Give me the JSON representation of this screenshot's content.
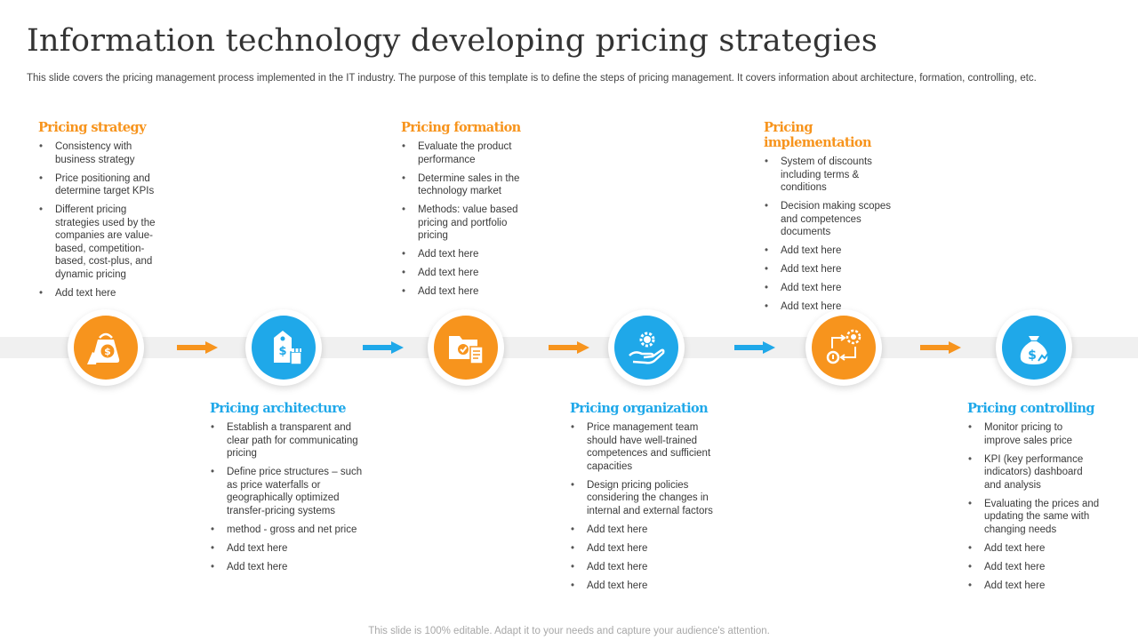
{
  "title": "Information technology developing pricing strategies",
  "subtitle": "This slide covers the pricing management process implemented in the IT industry. The purpose of this template is to define the steps of pricing management. It covers information about architecture, formation, controlling, etc.",
  "colors": {
    "orange": "#f7941d",
    "blue": "#1fa8e9"
  },
  "stages": [
    {
      "heading": "Pricing strategy",
      "icon": "money-bag-hand-icon",
      "items": [
        "Consistency with business strategy",
        "Price positioning and determine target KPIs",
        "Different pricing strategies used by the companies are value-based, competition-based, cost-plus, and dynamic pricing",
        "Add text here"
      ]
    },
    {
      "heading": "Pricing architecture",
      "icon": "price-tag-chess-icon",
      "items": [
        "Establish a transparent and clear path for communicating pricing",
        "Define price structures – such as price waterfalls or geographically optimized transfer-pricing systems",
        " method - gross and net price",
        "Add text here",
        "Add text here"
      ]
    },
    {
      "heading": "Pricing formation",
      "icon": "folder-document-icon",
      "items": [
        "Evaluate the product performance",
        "Determine sales in the technology market",
        "Methods: value based pricing and portfolio pricing",
        "Add text here",
        "Add text here",
        "Add text here"
      ]
    },
    {
      "heading": "Pricing organization",
      "icon": "hand-gear-icon",
      "items": [
        "Price management team should have well-trained competences and sufficient capacities",
        "Design pricing policies considering the changes in internal and external factors",
        "Add text here",
        "Add text here",
        "Add text here",
        "Add text here"
      ]
    },
    {
      "heading": "Pricing implementation",
      "icon": "process-cycle-icon",
      "items": [
        "System of discounts including terms & conditions",
        "Decision making scopes and competences documents",
        "Add text here",
        "Add text here",
        "Add text here",
        "Add text here"
      ]
    },
    {
      "heading": "Pricing controlling",
      "icon": "money-bag-growth-icon",
      "items": [
        "Monitor pricing to improve sales price",
        "KPI (key performance indicators) dashboard and analysis",
        "Evaluating the prices and updating the same with changing needs",
        "Add text here",
        "Add text here",
        "Add text here"
      ]
    }
  ],
  "footer": "This slide is 100% editable. Adapt it to your needs and capture your audience's attention."
}
